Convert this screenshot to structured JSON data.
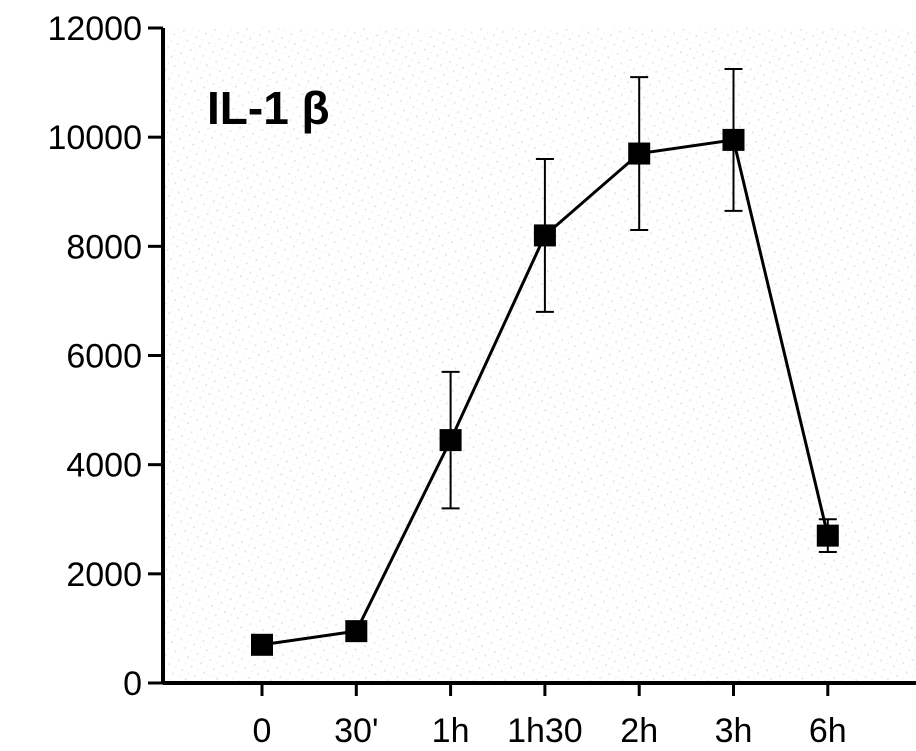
{
  "chart_data": {
    "type": "line",
    "title": "IL-1 β",
    "xlabel": "",
    "ylabel": "",
    "categories": [
      "0",
      "30'",
      "1h",
      "1h30",
      "2h",
      "3h",
      "6h"
    ],
    "series": [
      {
        "values": [
          700,
          950,
          4450,
          8200,
          9700,
          9950,
          2700
        ],
        "error": [
          150,
          150,
          1250,
          1400,
          1400,
          1300,
          300
        ]
      }
    ],
    "ylim": [
      0,
      12000
    ],
    "yticks": [
      "0",
      "2000",
      "4000",
      "6000",
      "8000",
      "10000",
      "12000"
    ],
    "grid": false,
    "legend": "none",
    "colors": {
      "line": "#000000",
      "marker": "#000000",
      "background": "#ffffff"
    }
  }
}
